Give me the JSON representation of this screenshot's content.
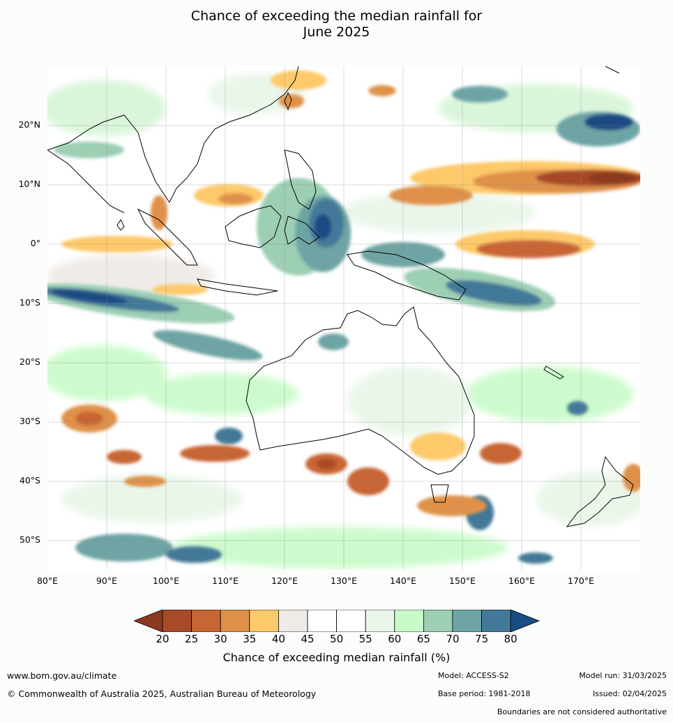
{
  "title_line1": "Chance of exceeding the median rainfall for",
  "title_line2": "June 2025",
  "map": {
    "lat_labels": [
      "20°N",
      "10°N",
      "0°",
      "10°S",
      "20°S",
      "30°S",
      "40°S",
      "50°S"
    ],
    "lon_labels": [
      "80°E",
      "90°E",
      "100°E",
      "110°E",
      "120°E",
      "130°E",
      "140°E",
      "150°E",
      "160°E",
      "170°E"
    ],
    "extent": {
      "lon_min": 80,
      "lon_max": 180,
      "lat_min": -55,
      "lat_max": 30
    }
  },
  "legend": {
    "title": "Chance of exceeding median rainfall (%)",
    "ticks": [
      "20",
      "25",
      "30",
      "35",
      "40",
      "45",
      "50",
      "55",
      "60",
      "65",
      "70",
      "75",
      "80"
    ],
    "colors": [
      "#8b3a20",
      "#a84a28",
      "#c86534",
      "#df914a",
      "#fdc96a",
      "#eeeae6",
      "#ffffff",
      "#ffffff",
      "#e9f6e9",
      "#c8fbc8",
      "#9ccfb4",
      "#6ea4a4",
      "#437898",
      "#1a4c84"
    ]
  },
  "footer": {
    "website": "www.bom.gov.au/climate",
    "copyright": "© Commonwealth of Australia 2025, Australian Bureau of Meteorology",
    "model": "Model: ACCESS-S2",
    "base_period": "Base period: 1981-2018",
    "model_run": "Model run: 31/03/2025",
    "issued": "Issued: 02/04/2025",
    "disclaimer": "Boundaries are not considered authoritative"
  }
}
